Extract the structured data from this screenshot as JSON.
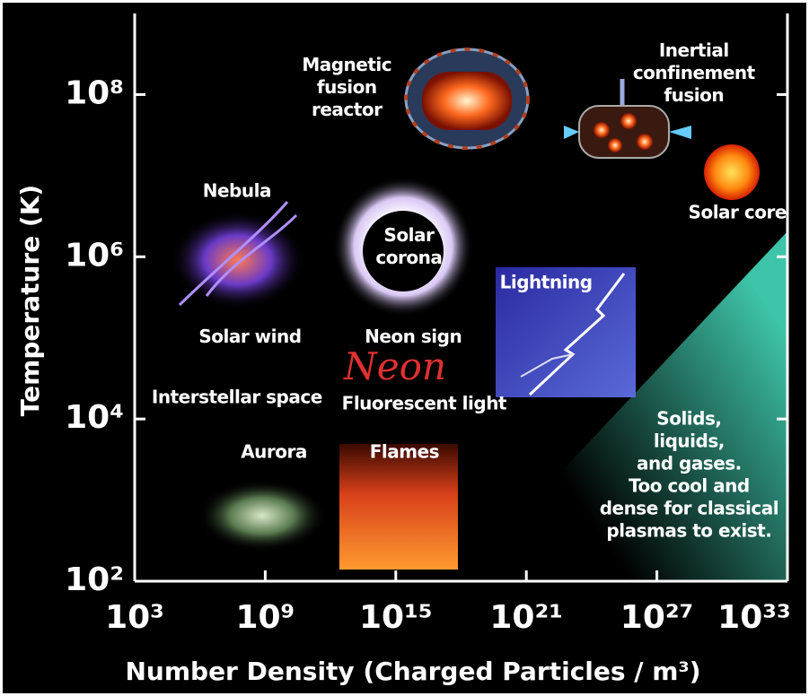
{
  "chart_data": {
    "type": "annotated-log-plane",
    "x_label": "Number Density (Charged Particles / m³)",
    "y_label": "Temperature (K)",
    "x_log": true,
    "y_log": true,
    "xlim": [
      1000,
      1e+33
    ],
    "ylim": [
      100,
      1000000000.0
    ],
    "xticks": [
      {
        "value": 1000,
        "label": "10³"
      },
      {
        "value": 1000000000.0,
        "label": "10⁹"
      },
      {
        "value": 1000000000000000.0,
        "label": "10¹⁵"
      },
      {
        "value": 1e+21,
        "label": "10²¹"
      },
      {
        "value": 1e+27,
        "label": "10²⁷"
      },
      {
        "value": 1e+33,
        "label": "10³³"
      }
    ],
    "yticks": [
      {
        "value": 100,
        "label": "10²"
      },
      {
        "value": 10000,
        "label": "10⁴"
      },
      {
        "value": 1000000,
        "label": "10⁶"
      },
      {
        "value": 100000000,
        "label": "10⁸"
      }
    ],
    "annotations": [
      {
        "lines": [
          "Magnetic",
          "fusion",
          "reactor"
        ],
        "x": 5600000000000.0,
        "y": 120000000.0
      },
      {
        "lines": [
          "Inertial",
          "confinement",
          "fusion"
        ],
        "x": 5e+28,
        "y": 180000000.0
      },
      {
        "lines": [
          "Solar core"
        ],
        "x": 5e+30,
        "y": 3400000.0
      },
      {
        "lines": [
          "Nebula"
        ],
        "x": 50000000.0,
        "y": 6300000.0
      },
      {
        "lines": [
          "Solar",
          "corona"
        ],
        "x": 4000000000000000.0,
        "y": 1300000.0
      },
      {
        "lines": [
          "Lightning"
        ],
        "x": 8e+21,
        "y": 470000.0
      },
      {
        "lines": [
          "Solar wind"
        ],
        "x": 200000000.0,
        "y": 100000.0
      },
      {
        "lines": [
          "Neon sign"
        ],
        "x": 6300000000000000.0,
        "y": 100000.0
      },
      {
        "lines": [
          "Interstellar space"
        ],
        "x": 50000000.0,
        "y": 18000.0
      },
      {
        "lines": [
          "Fluorescent light"
        ],
        "x": 2e+16,
        "y": 15000.0
      },
      {
        "lines": [
          "Aurora"
        ],
        "x": 2500000000.0,
        "y": 3800
      },
      {
        "lines": [
          "Flames"
        ],
        "x": 2500000000000000.0,
        "y": 3800
      },
      {
        "lines": [
          "Solids,",
          "liquids,",
          "and gases.",
          "Too cool and",
          "dense for classical",
          "plasmas to exist."
        ],
        "x": 3e+28,
        "y": 2000
      }
    ],
    "neon_glyph": "Neon"
  }
}
